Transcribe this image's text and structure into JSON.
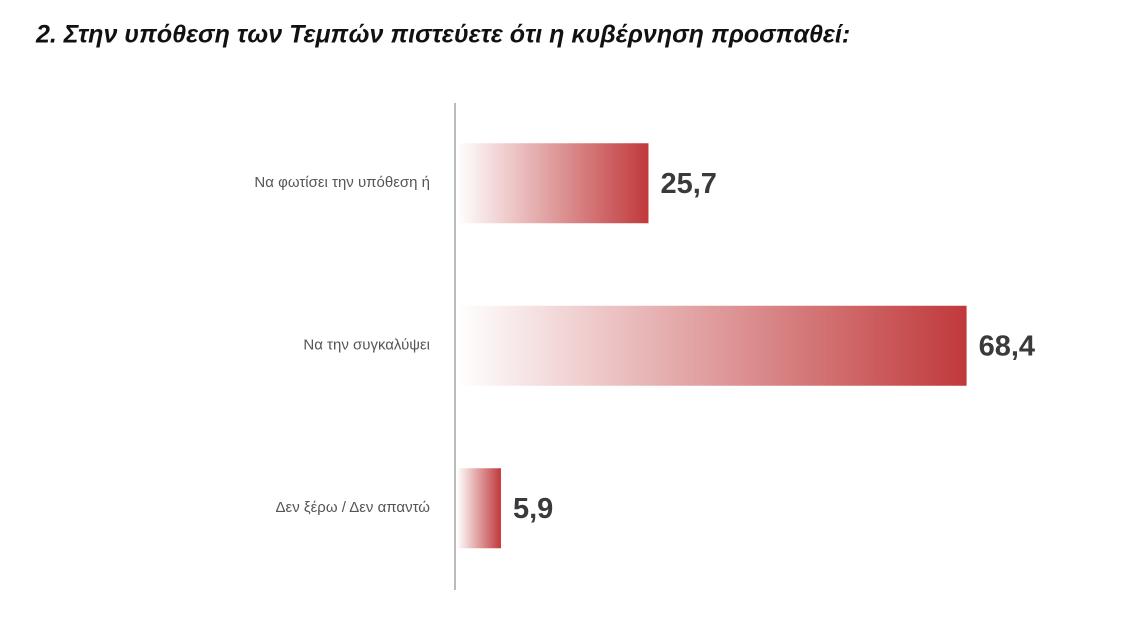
{
  "chart_data": {
    "type": "bar",
    "orientation": "horizontal",
    "title": "2. Στην υπόθεση των Τεμπών πιστεύετε ότι η κυβέρνηση προσπαθεί:",
    "categories": [
      "Να φωτίσει την υπόθεση ή",
      "Να την συγκαλύψει",
      "Δεν ξέρω / Δεν απαντώ"
    ],
    "values": [
      25.7,
      68.4,
      5.9
    ],
    "value_labels": [
      "25,7",
      "68,4",
      "5,9"
    ],
    "color": "#c0393b"
  }
}
